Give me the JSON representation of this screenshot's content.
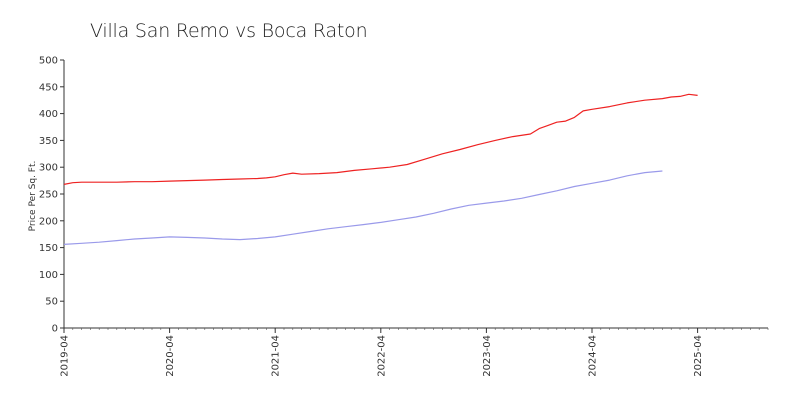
{
  "chart_data": {
    "type": "line",
    "title": "Villa San Remo vs Boca Raton",
    "xlabel": "",
    "ylabel": "Price Per Sq. Ft.",
    "ylim": [
      0,
      500
    ],
    "yticks": [
      0,
      50,
      100,
      150,
      200,
      250,
      300,
      350,
      400,
      450,
      500
    ],
    "xticks": [
      "2019-04",
      "2020-04",
      "2021-04",
      "2022-04",
      "2023-04",
      "2024-04",
      "2025-04"
    ],
    "xlim": [
      "2019-04",
      "2025-12"
    ],
    "grid": false,
    "legend": "none",
    "series": [
      {
        "color": "#ee2222",
        "points": [
          [
            "2019-04",
            268
          ],
          [
            "2019-05",
            271
          ],
          [
            "2019-06",
            272
          ],
          [
            "2019-08",
            272
          ],
          [
            "2019-10",
            272
          ],
          [
            "2019-12",
            273
          ],
          [
            "2020-02",
            273
          ],
          [
            "2020-04",
            274
          ],
          [
            "2020-06",
            275
          ],
          [
            "2020-08",
            276
          ],
          [
            "2020-10",
            277
          ],
          [
            "2020-12",
            278
          ],
          [
            "2021-02",
            279
          ],
          [
            "2021-03",
            280
          ],
          [
            "2021-04",
            282
          ],
          [
            "2021-05",
            286
          ],
          [
            "2021-06",
            289
          ],
          [
            "2021-07",
            287
          ],
          [
            "2021-09",
            288
          ],
          [
            "2021-11",
            290
          ],
          [
            "2022-01",
            294
          ],
          [
            "2022-03",
            297
          ],
          [
            "2022-05",
            300
          ],
          [
            "2022-07",
            305
          ],
          [
            "2022-09",
            315
          ],
          [
            "2022-11",
            325
          ],
          [
            "2023-01",
            333
          ],
          [
            "2023-03",
            342
          ],
          [
            "2023-05",
            350
          ],
          [
            "2023-07",
            357
          ],
          [
            "2023-09",
            362
          ],
          [
            "2023-10",
            372
          ],
          [
            "2023-11",
            378
          ],
          [
            "2023-12",
            384
          ],
          [
            "2024-01",
            386
          ],
          [
            "2024-02",
            393
          ],
          [
            "2024-03",
            405
          ],
          [
            "2024-04",
            408
          ],
          [
            "2024-06",
            413
          ],
          [
            "2024-08",
            420
          ],
          [
            "2024-10",
            425
          ],
          [
            "2024-12",
            428
          ],
          [
            "2025-01",
            431
          ],
          [
            "2025-02",
            432
          ],
          [
            "2025-03",
            436
          ],
          [
            "2025-04",
            434
          ]
        ]
      },
      {
        "color": "#9a9aea",
        "points": [
          [
            "2019-04",
            156
          ],
          [
            "2019-06",
            158
          ],
          [
            "2019-08",
            160
          ],
          [
            "2019-10",
            163
          ],
          [
            "2019-12",
            166
          ],
          [
            "2020-02",
            168
          ],
          [
            "2020-04",
            170
          ],
          [
            "2020-06",
            169
          ],
          [
            "2020-08",
            168
          ],
          [
            "2020-10",
            166
          ],
          [
            "2020-12",
            165
          ],
          [
            "2021-02",
            167
          ],
          [
            "2021-04",
            170
          ],
          [
            "2021-06",
            175
          ],
          [
            "2021-08",
            180
          ],
          [
            "2021-10",
            185
          ],
          [
            "2021-12",
            189
          ],
          [
            "2022-02",
            193
          ],
          [
            "2022-04",
            197
          ],
          [
            "2022-06",
            202
          ],
          [
            "2022-08",
            207
          ],
          [
            "2022-10",
            214
          ],
          [
            "2022-12",
            222
          ],
          [
            "2023-02",
            229
          ],
          [
            "2023-04",
            233
          ],
          [
            "2023-06",
            237
          ],
          [
            "2023-08",
            242
          ],
          [
            "2023-10",
            249
          ],
          [
            "2023-12",
            256
          ],
          [
            "2024-02",
            264
          ],
          [
            "2024-04",
            270
          ],
          [
            "2024-06",
            276
          ],
          [
            "2024-08",
            284
          ],
          [
            "2024-10",
            290
          ],
          [
            "2024-12",
            293
          ]
        ]
      }
    ]
  }
}
